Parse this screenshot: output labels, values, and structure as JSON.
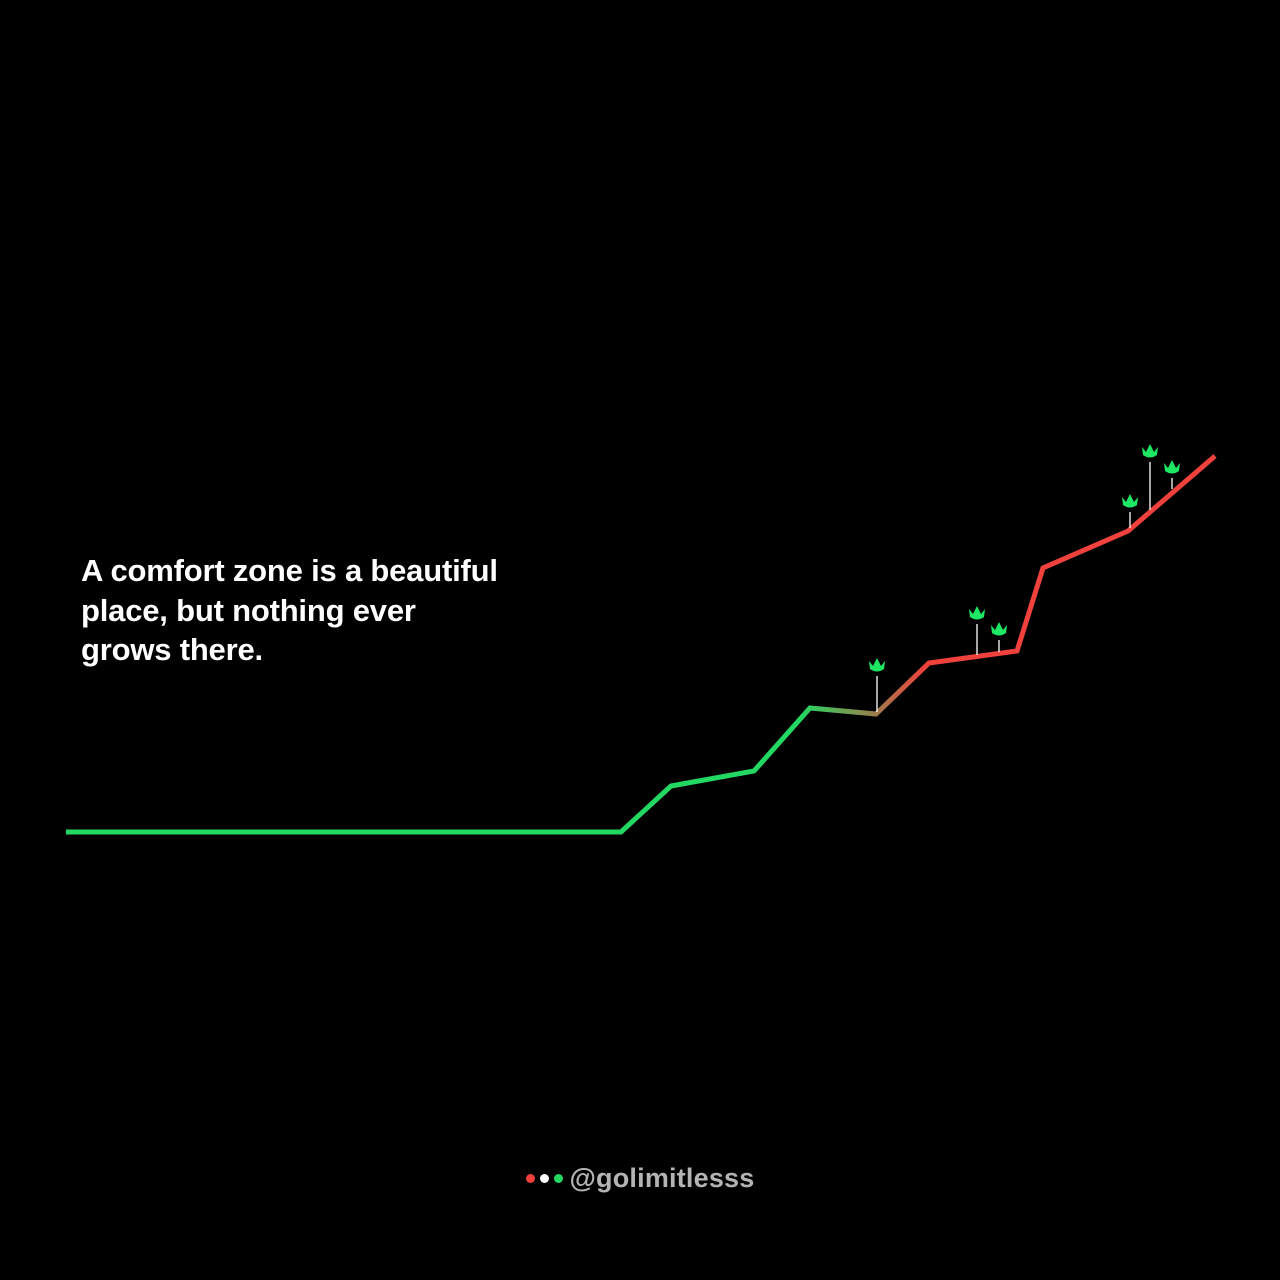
{
  "quote": {
    "lines": [
      "A comfort zone is a beautiful",
      "place, but nothing ever",
      "grows there."
    ]
  },
  "footer": {
    "handle": "@golimitlesss",
    "dot_colors": [
      "#f0413c",
      "#ffffff",
      "#22d862"
    ]
  },
  "colors": {
    "background": "#000000",
    "line_green": "#22d862",
    "line_red": "#f0413c",
    "sprout": "#1ee863",
    "stem": "#ffffff"
  },
  "icons": {
    "sprout": "sprout-icon"
  },
  "growth_line": {
    "segment_count": 2,
    "sprout_count": 6
  }
}
